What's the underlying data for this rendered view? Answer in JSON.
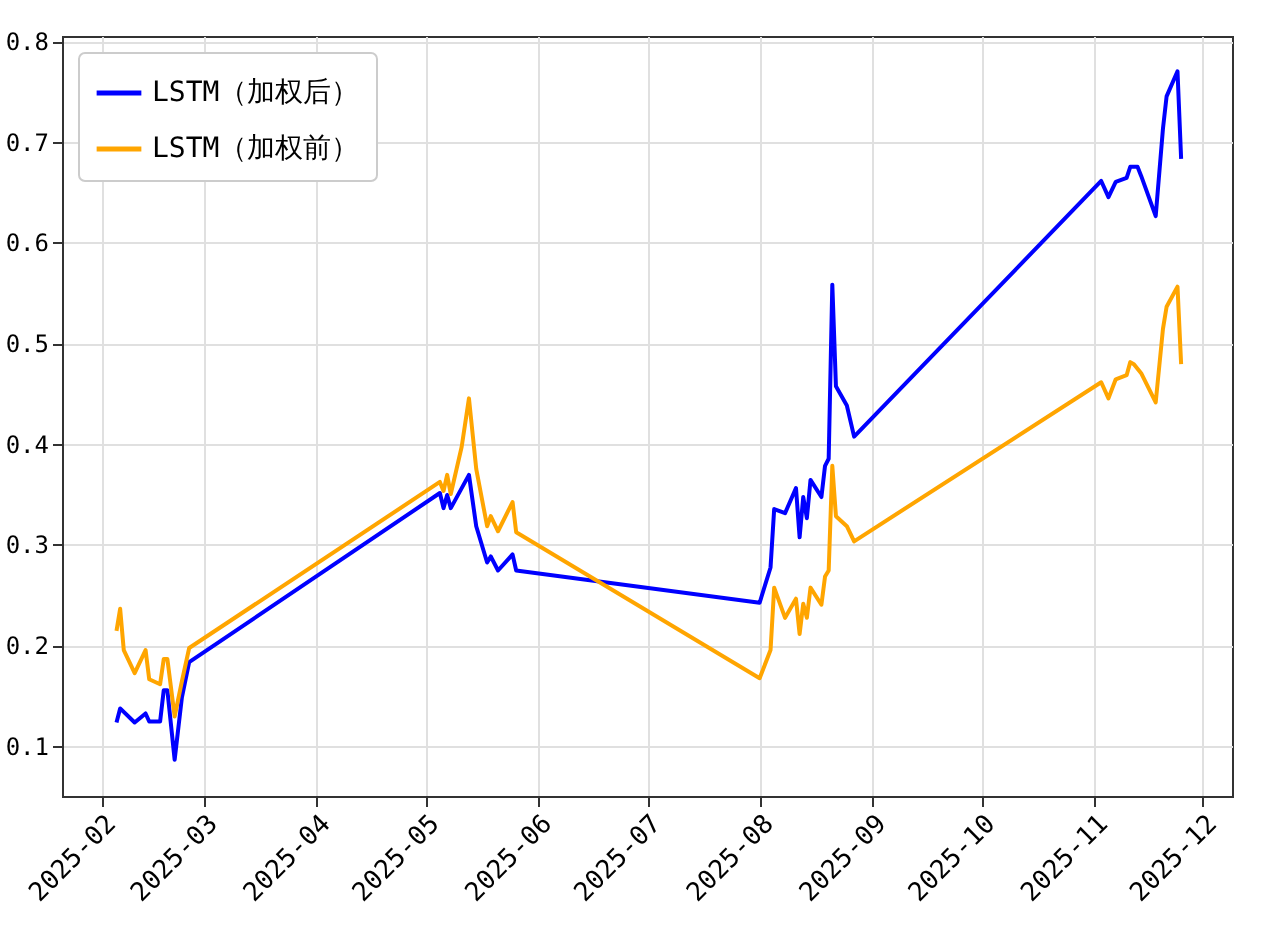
{
  "chart_data": {
    "type": "line",
    "legend": "top left",
    "grid": true,
    "xlim": [
      "2025-01-21",
      "2025-12-09"
    ],
    "xticks": [
      {
        "value": "2025-02-01",
        "label": "2025-02"
      },
      {
        "value": "2025-03-01",
        "label": "2025-03"
      },
      {
        "value": "2025-04-01",
        "label": "2025-04"
      },
      {
        "value": "2025-05-01",
        "label": "2025-05"
      },
      {
        "value": "2025-06-01",
        "label": "2025-06"
      },
      {
        "value": "2025-07-01",
        "label": "2025-07"
      },
      {
        "value": "2025-08-01",
        "label": "2025-08"
      },
      {
        "value": "2025-09-01",
        "label": "2025-09"
      },
      {
        "value": "2025-10-01",
        "label": "2025-10"
      },
      {
        "value": "2025-11-01",
        "label": "2025-11"
      },
      {
        "value": "2025-12-01",
        "label": "2025-12"
      }
    ],
    "ylim": [
      0.05,
      0.805
    ],
    "yticks": [
      0.1,
      0.2,
      0.3,
      0.4,
      0.5,
      0.6,
      0.7,
      0.8
    ],
    "series": [
      {
        "name": "LSTM（加权后）",
        "color": "#0000ff",
        "x": [
          "2025-02-05",
          "2025-02-06",
          "2025-02-10",
          "2025-02-13",
          "2025-02-14",
          "2025-02-17",
          "2025-02-18",
          "2025-02-19",
          "2025-02-21",
          "2025-02-23",
          "2025-02-25",
          "2025-05-05",
          "2025-05-06",
          "2025-05-07",
          "2025-05-08",
          "2025-05-13",
          "2025-05-15",
          "2025-05-18",
          "2025-05-19",
          "2025-05-21",
          "2025-05-25",
          "2025-05-26",
          "2025-08-01",
          "2025-08-04",
          "2025-08-05",
          "2025-08-08",
          "2025-08-11",
          "2025-08-12",
          "2025-08-13",
          "2025-08-14",
          "2025-08-15",
          "2025-08-18",
          "2025-08-19",
          "2025-08-20",
          "2025-08-21",
          "2025-08-22",
          "2025-08-25",
          "2025-08-27",
          "2025-11-03",
          "2025-11-05",
          "2025-11-07",
          "2025-11-10",
          "2025-11-11",
          "2025-11-13",
          "2025-11-14",
          "2025-11-18",
          "2025-11-20",
          "2025-11-21",
          "2025-11-24",
          "2025-11-25"
        ],
        "values": [
          0.123,
          0.137,
          0.123,
          0.132,
          0.124,
          0.124,
          0.155,
          0.155,
          0.086,
          0.148,
          0.183,
          0.351,
          0.336,
          0.349,
          0.336,
          0.369,
          0.318,
          0.282,
          0.288,
          0.274,
          0.29,
          0.274,
          0.242,
          0.277,
          0.335,
          0.331,
          0.356,
          0.307,
          0.347,
          0.326,
          0.364,
          0.347,
          0.378,
          0.385,
          0.558,
          0.457,
          0.438,
          0.407,
          0.661,
          0.645,
          0.66,
          0.664,
          0.675,
          0.675,
          0.666,
          0.626,
          0.713,
          0.745,
          0.77,
          0.683
        ]
      },
      {
        "name": "LSTM（加权前）",
        "color": "#ffa500",
        "x": [
          "2025-02-05",
          "2025-02-06",
          "2025-02-07",
          "2025-02-10",
          "2025-02-13",
          "2025-02-14",
          "2025-02-17",
          "2025-02-18",
          "2025-02-19",
          "2025-02-21",
          "2025-02-23",
          "2025-02-25",
          "2025-05-05",
          "2025-05-06",
          "2025-05-07",
          "2025-05-08",
          "2025-05-11",
          "2025-05-13",
          "2025-05-15",
          "2025-05-18",
          "2025-05-19",
          "2025-05-21",
          "2025-05-25",
          "2025-05-26",
          "2025-08-01",
          "2025-08-04",
          "2025-08-05",
          "2025-08-08",
          "2025-08-11",
          "2025-08-12",
          "2025-08-13",
          "2025-08-14",
          "2025-08-15",
          "2025-08-18",
          "2025-08-19",
          "2025-08-20",
          "2025-08-21",
          "2025-08-22",
          "2025-08-25",
          "2025-08-27",
          "2025-11-03",
          "2025-11-05",
          "2025-11-07",
          "2025-11-10",
          "2025-11-11",
          "2025-11-12",
          "2025-11-14",
          "2025-11-18",
          "2025-11-20",
          "2025-11-21",
          "2025-11-24",
          "2025-11-25"
        ],
        "values": [
          0.214,
          0.236,
          0.195,
          0.172,
          0.195,
          0.166,
          0.161,
          0.186,
          0.186,
          0.129,
          0.164,
          0.197,
          0.362,
          0.353,
          0.369,
          0.35,
          0.397,
          0.445,
          0.375,
          0.318,
          0.328,
          0.313,
          0.342,
          0.312,
          0.167,
          0.195,
          0.257,
          0.227,
          0.246,
          0.211,
          0.241,
          0.227,
          0.257,
          0.24,
          0.268,
          0.274,
          0.378,
          0.328,
          0.318,
          0.303,
          0.461,
          0.445,
          0.464,
          0.468,
          0.481,
          0.479,
          0.47,
          0.441,
          0.514,
          0.536,
          0.556,
          0.479
        ]
      }
    ]
  }
}
